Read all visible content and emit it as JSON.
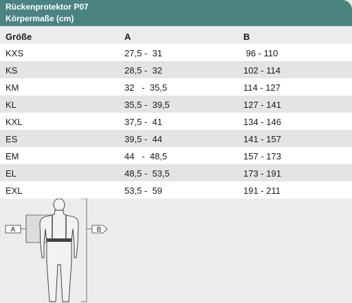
{
  "header": {
    "title": "Rückenprotektor P07",
    "subtitle": "Körpermaße (cm)"
  },
  "table": {
    "columns": [
      "Größe",
      "A",
      "B"
    ],
    "rows": [
      {
        "size": "KXS",
        "a": "27,5 -  31",
        "b": " 96 - 110"
      },
      {
        "size": "KS",
        "a": "28,5 -  32",
        "b": "102 - 114"
      },
      {
        "size": "KM",
        "a": "32   -  35,5",
        "b": "114 - 127"
      },
      {
        "size": "KL",
        "a": "35,5 -  39,5",
        "b": "127 - 141"
      },
      {
        "size": "KXL",
        "a": "37,5 -  41",
        "b": "134 - 146"
      },
      {
        "size": "ES",
        "a": "39,5 -  44",
        "b": "141 - 157"
      },
      {
        "size": "EM",
        "a": "44   -  48,5",
        "b": "157 - 173"
      },
      {
        "size": "EL",
        "a": "48,5 -  53,5",
        "b": "173 - 191"
      },
      {
        "size": "EXL",
        "a": "53,5 -  59",
        "b": "191 - 211"
      }
    ]
  },
  "figure": {
    "label_a": "A",
    "label_b": "B",
    "icon": "body-measurement-icon"
  }
}
